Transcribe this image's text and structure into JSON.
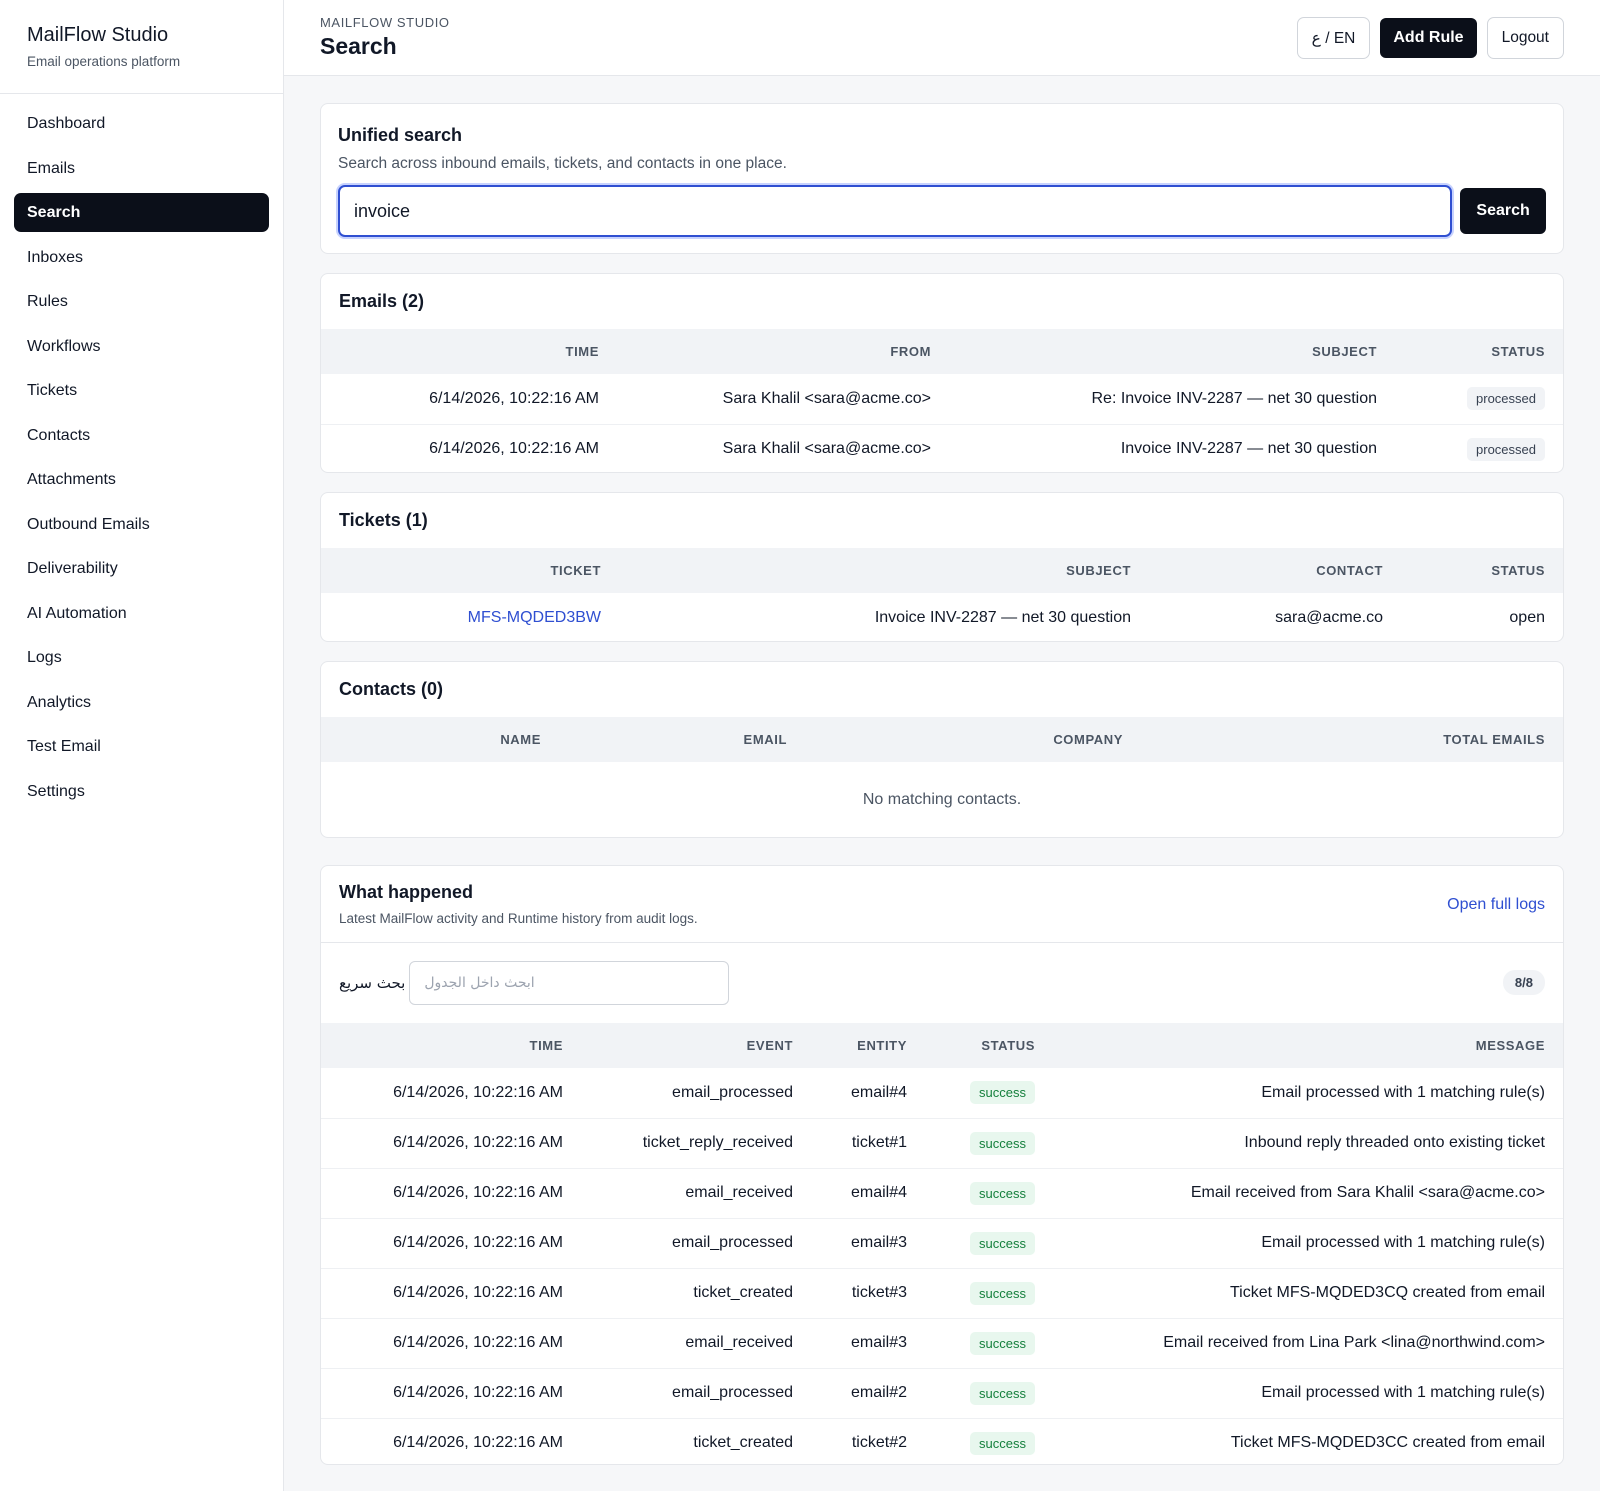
{
  "brand": {
    "title": "MailFlow Studio",
    "subtitle": "Email operations platform"
  },
  "sidebar": {
    "items": [
      {
        "label": "Dashboard"
      },
      {
        "label": "Emails"
      },
      {
        "label": "Search",
        "active": true
      },
      {
        "label": "Inboxes"
      },
      {
        "label": "Rules"
      },
      {
        "label": "Workflows"
      },
      {
        "label": "Tickets"
      },
      {
        "label": "Contacts"
      },
      {
        "label": "Attachments"
      },
      {
        "label": "Outbound Emails"
      },
      {
        "label": "Deliverability"
      },
      {
        "label": "AI Automation"
      },
      {
        "label": "Logs"
      },
      {
        "label": "Analytics"
      },
      {
        "label": "Test Email"
      },
      {
        "label": "Settings"
      }
    ]
  },
  "header": {
    "eyebrow": "MAILFLOW STUDIO",
    "title": "Search",
    "lang_toggle": "ع / EN",
    "add_rule": "Add Rule",
    "logout": "Logout"
  },
  "search": {
    "title": "Unified search",
    "description": "Search across inbound emails, tickets, and contacts in one place.",
    "value": "invoice",
    "button": "Search"
  },
  "emails": {
    "title": "Emails (2)",
    "columns": [
      "Time",
      "From",
      "Subject",
      "Status"
    ],
    "rows": [
      {
        "time": "6/14/2026, 10:22:16 AM",
        "from": "Sara Khalil <sara@acme.co>",
        "subject": "Re: Invoice INV-2287 — net 30 question",
        "status": "processed"
      },
      {
        "time": "6/14/2026, 10:22:16 AM",
        "from": "Sara Khalil <sara@acme.co>",
        "subject": "Invoice INV-2287 — net 30 question",
        "status": "processed"
      }
    ]
  },
  "tickets": {
    "title": "Tickets (1)",
    "columns": [
      "Ticket",
      "Subject",
      "Contact",
      "Status"
    ],
    "rows": [
      {
        "ticket": "MFS-MQDED3BW",
        "subject": "Invoice INV-2287 — net 30 question",
        "contact": "sara@acme.co",
        "status": "open"
      }
    ]
  },
  "contacts": {
    "title": "Contacts (0)",
    "columns": [
      "Name",
      "Email",
      "Company",
      "Total Emails"
    ],
    "empty": "No matching contacts."
  },
  "logs": {
    "title": "What happened",
    "subtitle": "Latest MailFlow activity and Runtime history from audit logs.",
    "open_full": "Open full logs",
    "filter_label": "بحث سريع",
    "filter_placeholder": "ابحث داخل الجدول",
    "count": "8/8",
    "columns": [
      "Time",
      "Event",
      "Entity",
      "Status",
      "Message"
    ],
    "rows": [
      {
        "time": "6/14/2026, 10:22:16 AM",
        "event": "email_processed",
        "entity": "email#4",
        "status": "success",
        "message": "Email processed with 1 matching rule(s)"
      },
      {
        "time": "6/14/2026, 10:22:16 AM",
        "event": "ticket_reply_received",
        "entity": "ticket#1",
        "status": "success",
        "message": "Inbound reply threaded onto existing ticket"
      },
      {
        "time": "6/14/2026, 10:22:16 AM",
        "event": "email_received",
        "entity": "email#4",
        "status": "success",
        "message": "Email received from Sara Khalil <sara@acme.co>"
      },
      {
        "time": "6/14/2026, 10:22:16 AM",
        "event": "email_processed",
        "entity": "email#3",
        "status": "success",
        "message": "Email processed with 1 matching rule(s)"
      },
      {
        "time": "6/14/2026, 10:22:16 AM",
        "event": "ticket_created",
        "entity": "ticket#3",
        "status": "success",
        "message": "Ticket MFS-MQDED3CQ created from email"
      },
      {
        "time": "6/14/2026, 10:22:16 AM",
        "event": "email_received",
        "entity": "email#3",
        "status": "success",
        "message": "Email received from Lina Park <lina@northwind.com>"
      },
      {
        "time": "6/14/2026, 10:22:16 AM",
        "event": "email_processed",
        "entity": "email#2",
        "status": "success",
        "message": "Email processed with 1 matching rule(s)"
      },
      {
        "time": "6/14/2026, 10:22:16 AM",
        "event": "ticket_created",
        "entity": "ticket#2",
        "status": "success",
        "message": "Ticket MFS-MQDED3CC created from email"
      }
    ]
  },
  "colors": {
    "primary": "#0b0f19",
    "link": "#2f4fd1",
    "success_bg": "#e8f7ee",
    "success_text": "#15803d"
  }
}
